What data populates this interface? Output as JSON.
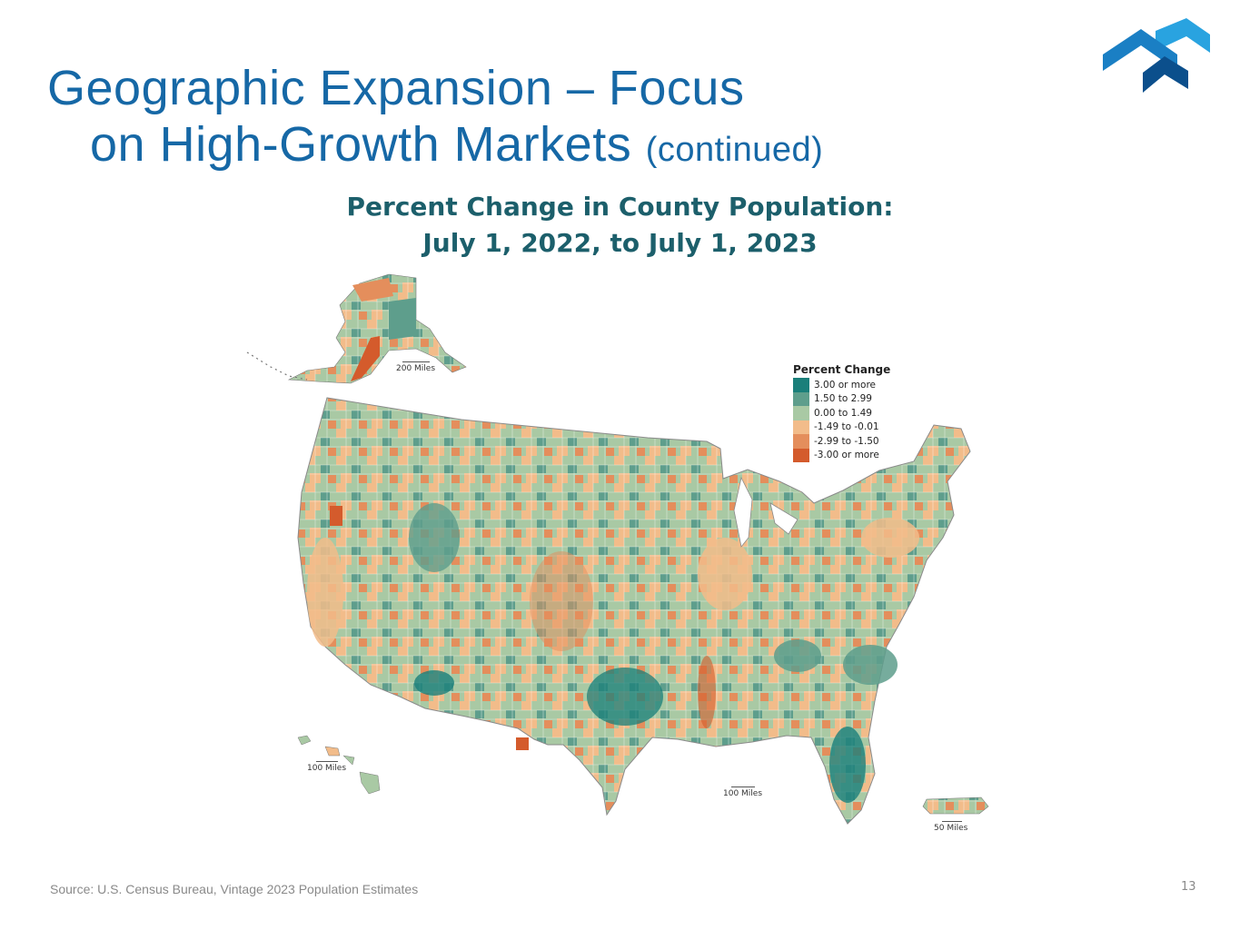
{
  "slide": {
    "title_line1": "Geographic Expansion – Focus",
    "title_line2": "on High-Growth Markets",
    "title_continued": "(continued)",
    "source": "Source: U.S. Census Bureau, Vintage 2023 Population Estimates",
    "page_number": "13"
  },
  "map": {
    "title_line1": "Percent Change in County Population:",
    "title_line2": "July 1, 2022, to July 1, 2023",
    "legend_title": "Percent Change",
    "legend": [
      {
        "label": "3.00 or more",
        "color": "#1a7f7a"
      },
      {
        "label": "1.50 to 2.99",
        "color": "#5e9e8c"
      },
      {
        "label": "0.00 to 1.49",
        "color": "#a9c9a4"
      },
      {
        "label": "-1.49 to -0.01",
        "color": "#f2bc8a"
      },
      {
        "label": "-2.99 to -1.50",
        "color": "#e48e5c"
      },
      {
        "label": "-3.00 or more",
        "color": "#d45b2c"
      }
    ],
    "scales": {
      "alaska": "200 Miles",
      "hawaii": "100 Miles",
      "conus": "100 Miles",
      "puerto_rico": "50 Miles"
    }
  },
  "logo": {
    "name": "company-logo",
    "colors": [
      "#1a7fc4",
      "#29a3e0",
      "#0b4f8c"
    ]
  }
}
